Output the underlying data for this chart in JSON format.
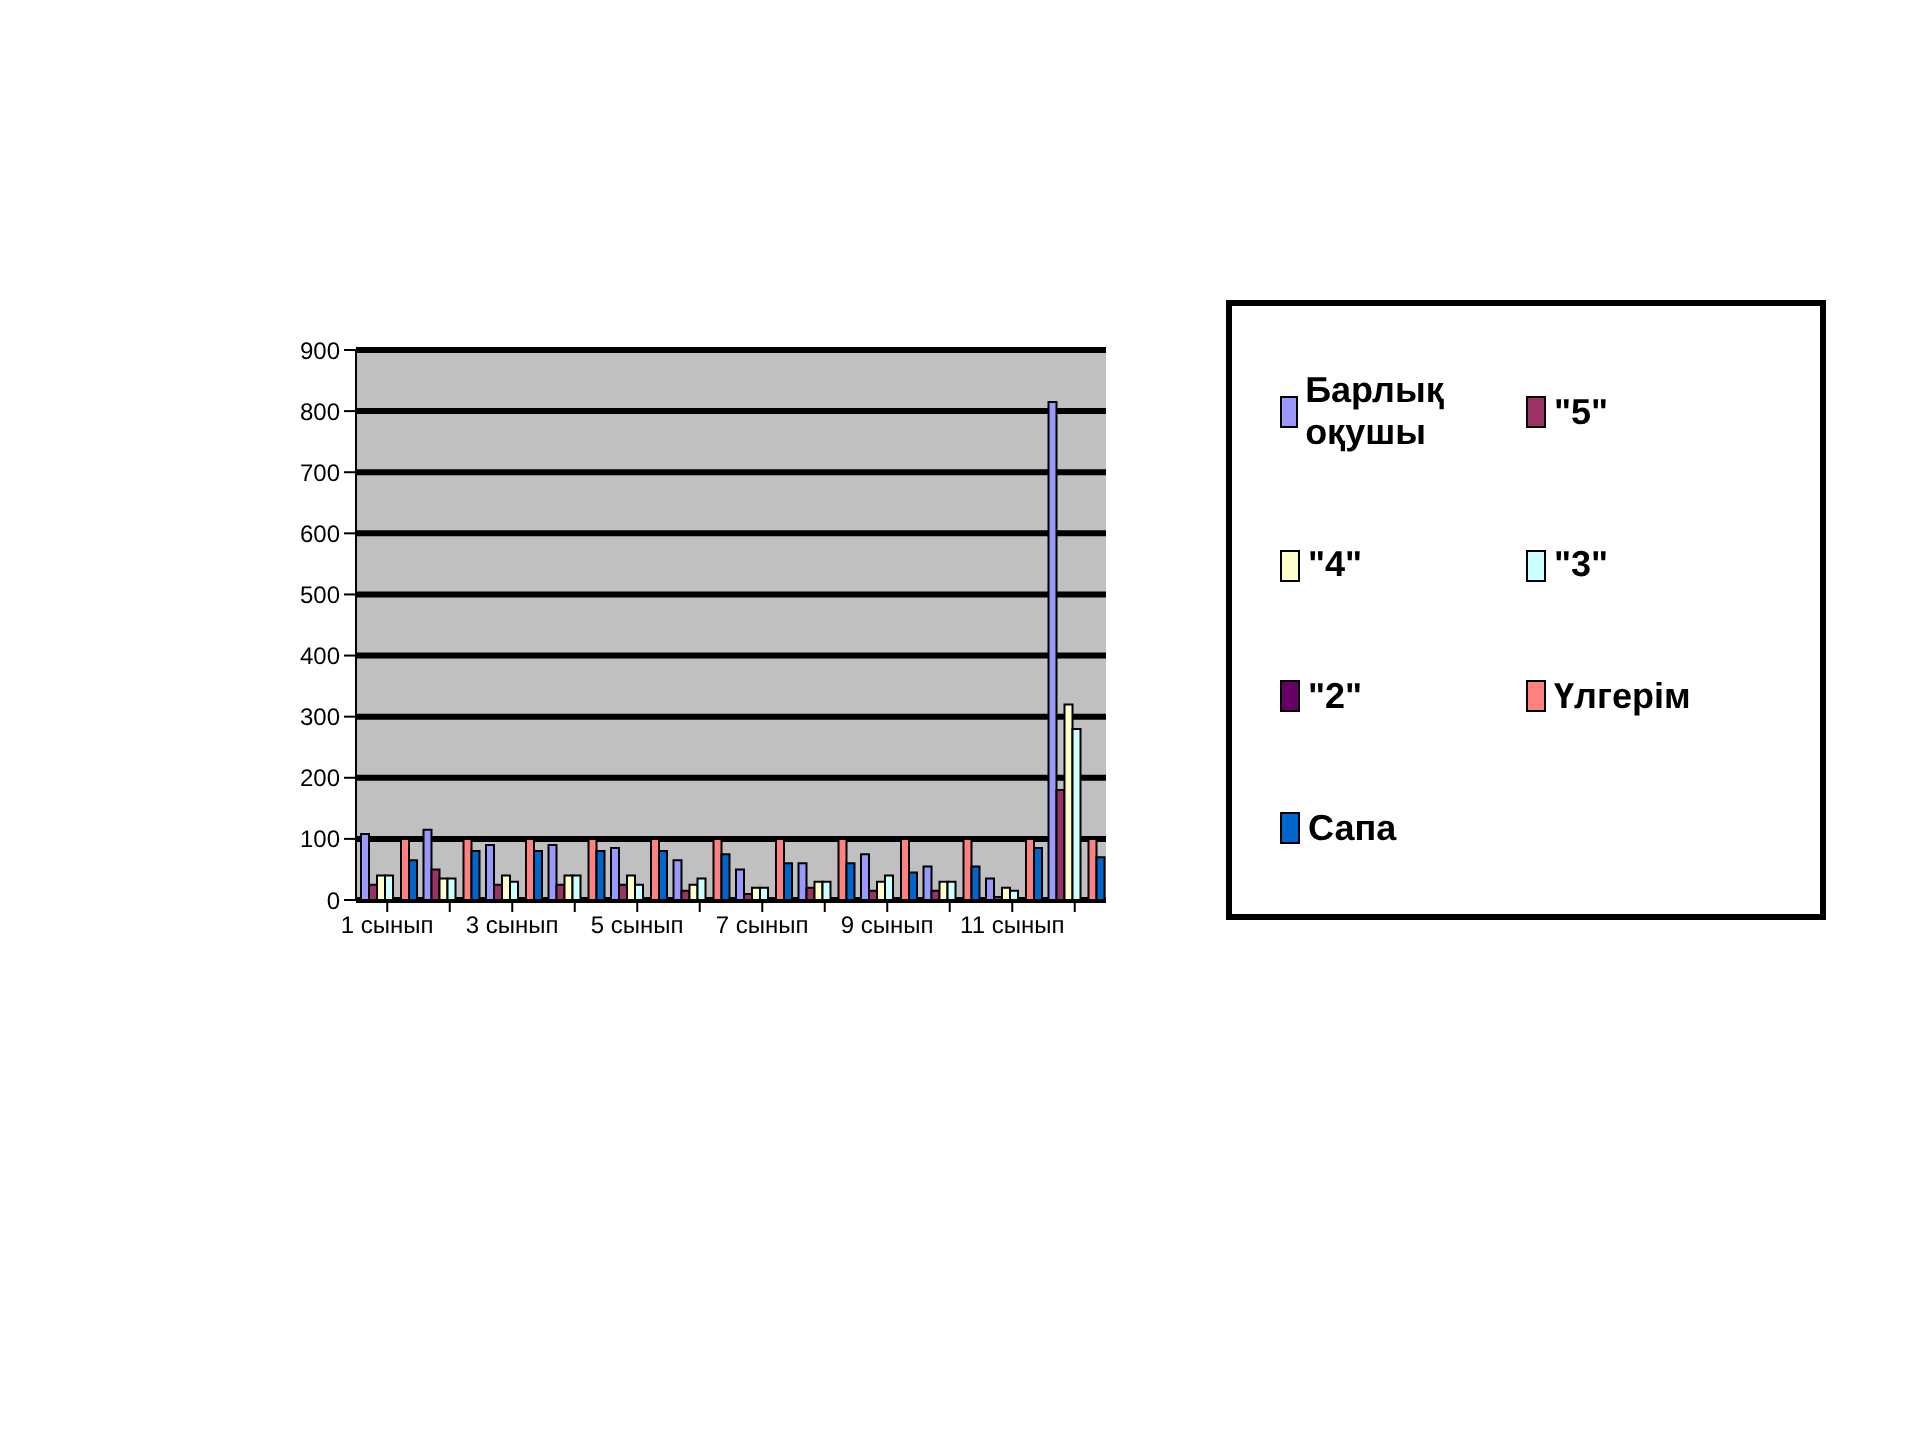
{
  "chart_data": {
    "type": "bar",
    "categories": [
      "1 сынып",
      null,
      "3 сынып",
      null,
      "5 сынып",
      null,
      "7 сынып",
      null,
      "9 сынып",
      null,
      "11 сынып",
      null
    ],
    "series": [
      {
        "name": "Барлық оқушы",
        "color": "#9999ff",
        "values": [
          108,
          115,
          90,
          90,
          85,
          65,
          50,
          60,
          75,
          55,
          35,
          815
        ]
      },
      {
        "name": "\"5\"",
        "color": "#993366",
        "values": [
          25,
          50,
          25,
          25,
          25,
          15,
          10,
          20,
          15,
          15,
          5,
          180
        ]
      },
      {
        "name": "\"4\"",
        "color": "#ffffcc",
        "values": [
          40,
          35,
          40,
          40,
          40,
          25,
          20,
          30,
          30,
          30,
          20,
          320
        ]
      },
      {
        "name": "\"3\"",
        "color": "#ccffff",
        "values": [
          40,
          35,
          30,
          40,
          25,
          35,
          20,
          30,
          40,
          30,
          15,
          280
        ]
      },
      {
        "name": "\"2\"",
        "color": "#660066",
        "values": [
          0,
          0,
          0,
          0,
          0,
          0,
          0,
          0,
          0,
          0,
          0,
          0
        ]
      },
      {
        "name": "Үлгерім",
        "color": "#ff8080",
        "values": [
          100,
          100,
          100,
          100,
          100,
          100,
          100,
          100,
          100,
          100,
          100,
          100
        ]
      },
      {
        "name": "Сапа",
        "color": "#0066cc",
        "values": [
          65,
          80,
          80,
          80,
          80,
          75,
          60,
          60,
          45,
          55,
          85,
          70
        ]
      }
    ],
    "ylim": [
      0,
      900
    ],
    "yticks": [
      0,
      100,
      200,
      300,
      400,
      500,
      600,
      700,
      800,
      900
    ],
    "grid": "y",
    "legend": "right"
  }
}
